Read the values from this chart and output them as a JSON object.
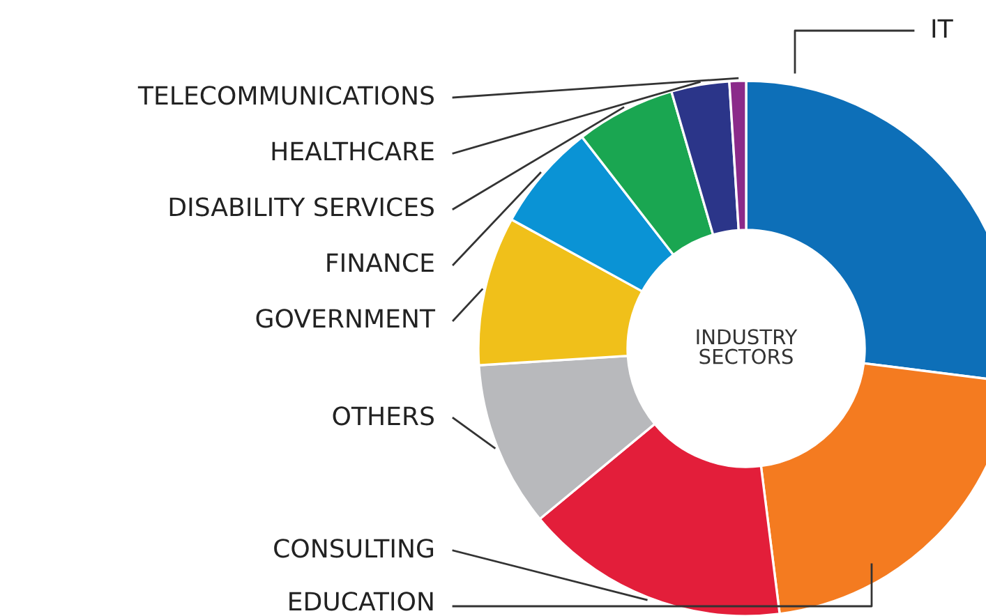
{
  "chart_data": {
    "type": "donut",
    "title": "INDUSTRY\nSECTORS",
    "categories": [
      "IT",
      "EDUCATION",
      "CONSULTING",
      "OTHERS",
      "GOVERNMENT",
      "FINANCE",
      "DISABILITY SERVICES",
      "HEALTHCARE",
      "TELECOMMUNICATIONS"
    ],
    "values": [
      27,
      21,
      16,
      10,
      9,
      6.5,
      6,
      3.5,
      1
    ],
    "colors": [
      "#0d6fb8",
      "#f47b20",
      "#e31e3a",
      "#b8b9bc",
      "#f0c01a",
      "#0a93d5",
      "#1aa651",
      "#2b3589",
      "#8b2a8a"
    ],
    "legend": false
  }
}
